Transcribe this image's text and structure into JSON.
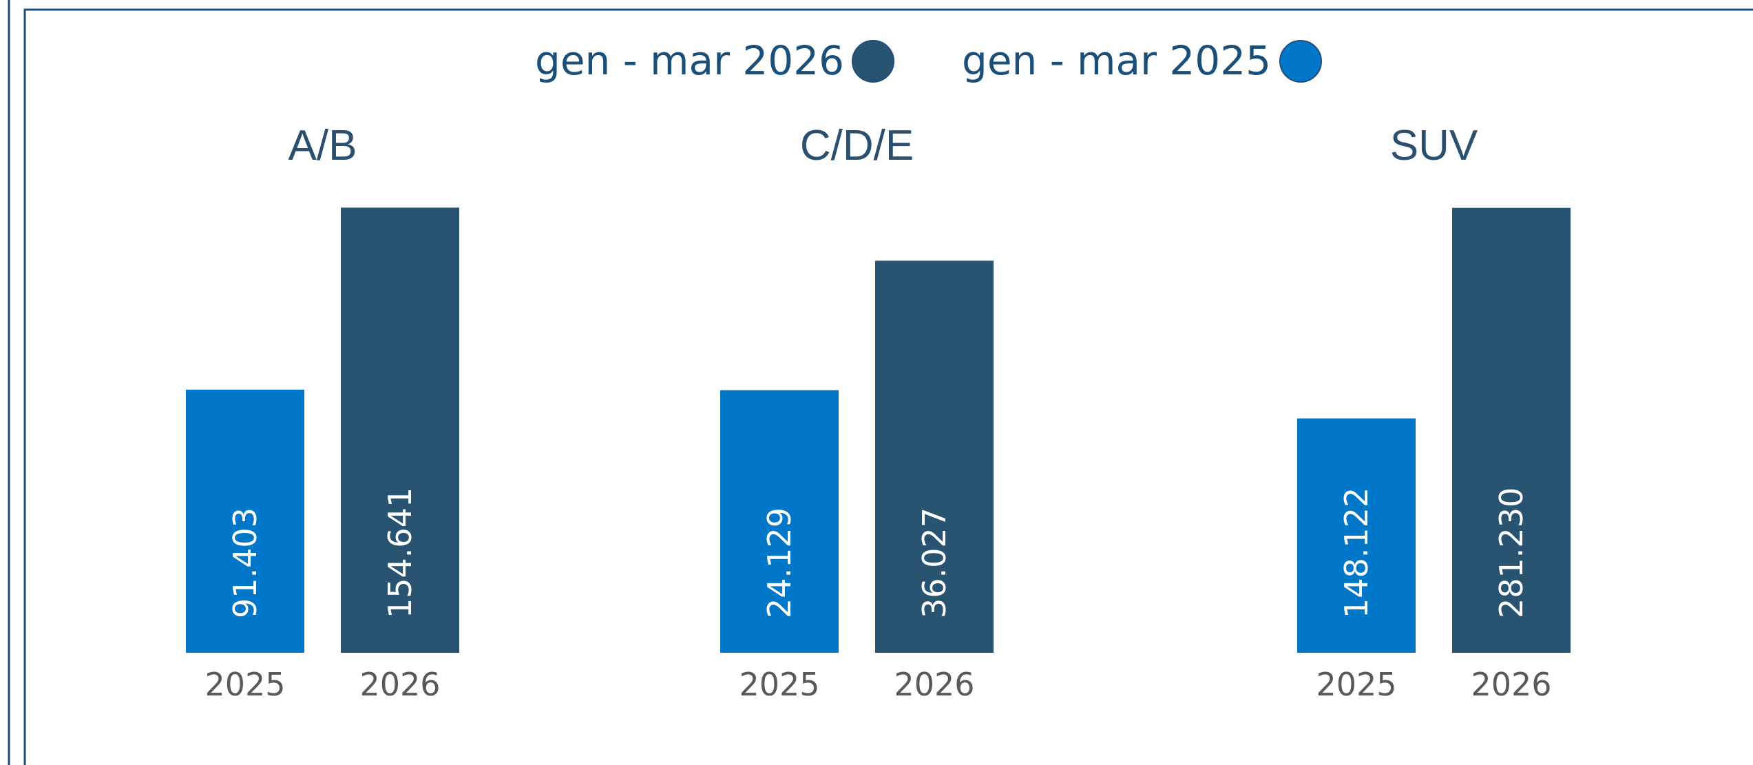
{
  "legend": [
    {
      "label": "gen - mar 2026",
      "color": "#285472"
    },
    {
      "label": "gen - mar 2025",
      "color": "#0077c8"
    }
  ],
  "chart_data": [
    {
      "type": "bar",
      "title": "A/B",
      "categories": [
        "2025",
        "2026"
      ],
      "values": [
        91403,
        154641
      ],
      "value_labels": [
        "91.403",
        "154.641"
      ],
      "colors": [
        "#0077c8",
        "#285472"
      ],
      "ylim": [
        0,
        155000
      ]
    },
    {
      "type": "bar",
      "title": "C/D/E",
      "categories": [
        "2025",
        "2026"
      ],
      "values": [
        24129,
        36027
      ],
      "value_labels": [
        "24.129",
        "36.027"
      ],
      "colors": [
        "#0077c8",
        "#285472"
      ],
      "ylim": [
        0,
        41000
      ]
    },
    {
      "type": "bar",
      "title": "SUV",
      "categories": [
        "2025",
        "2026"
      ],
      "values": [
        148122,
        281230
      ],
      "value_labels": [
        "148.122",
        "281.230"
      ],
      "colors": [
        "#0077c8",
        "#285472"
      ],
      "ylim": [
        0,
        282000
      ]
    }
  ]
}
